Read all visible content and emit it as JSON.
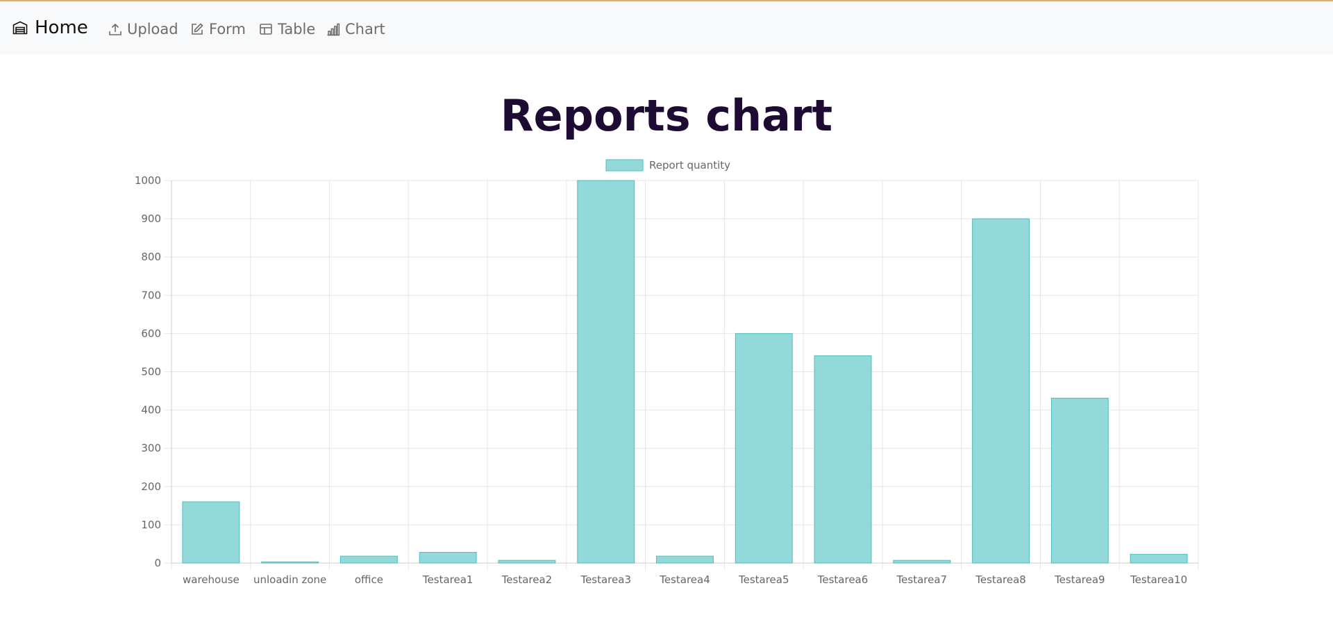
{
  "nav": {
    "brand": "Home",
    "links": [
      {
        "label": "Upload",
        "icon": "upload-icon"
      },
      {
        "label": "Form",
        "icon": "edit-icon"
      },
      {
        "label": "Table",
        "icon": "table-icon"
      },
      {
        "label": "Chart",
        "icon": "bar-chart-icon"
      }
    ],
    "brand_icon": "warehouse-icon"
  },
  "page": {
    "title": "Reports chart"
  },
  "colors": {
    "bar_fill": "#94d9d9",
    "bar_stroke": "#4dbdbd",
    "title": "#1e0b33",
    "accent_line": "#f0a868",
    "grid": "#e5e5e5",
    "tick_text": "#666666"
  },
  "chart_data": {
    "type": "bar",
    "categories": [
      "warehouse",
      "unloadin zone",
      "office",
      "Testarea1",
      "Testarea2",
      "Testarea3",
      "Testarea4",
      "Testarea5",
      "Testarea6",
      "Testarea7",
      "Testarea8",
      "Testarea9",
      "Testarea10"
    ],
    "series": [
      {
        "name": "Report quantity",
        "values": [
          160,
          3,
          18,
          28,
          7,
          1000,
          18,
          600,
          542,
          7,
          900,
          431,
          23
        ]
      }
    ],
    "yticks": [
      "0",
      "100",
      "200",
      "300",
      "400",
      "500",
      "600",
      "700",
      "800",
      "900",
      "1000"
    ],
    "ylim": [
      0,
      1000
    ],
    "legend_position": "top-center",
    "grid": true
  }
}
